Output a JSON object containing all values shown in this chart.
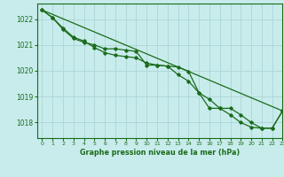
{
  "title": "Graphe pression niveau de la mer (hPa)",
  "background_color": "#c8ecec",
  "grid_color": "#b0d8d8",
  "line_color": "#1a6b1a",
  "text_color": "#1a6b1a",
  "xlim": [
    -0.5,
    23
  ],
  "ylim": [
    1017.4,
    1022.6
  ],
  "yticks": [
    1018,
    1019,
    1020,
    1021,
    1022
  ],
  "xticks": [
    0,
    1,
    2,
    3,
    4,
    5,
    6,
    7,
    8,
    9,
    10,
    11,
    12,
    13,
    14,
    15,
    16,
    17,
    18,
    19,
    20,
    21,
    22,
    23
  ],
  "series1_x": [
    0,
    1,
    2,
    3,
    4,
    5,
    6,
    7,
    8,
    9,
    10,
    11,
    12,
    13,
    14,
    15,
    16,
    17,
    18,
    19,
    20,
    21,
    22,
    23
  ],
  "series1_y": [
    1022.35,
    1022.05,
    1021.6,
    1021.25,
    1021.1,
    1021.0,
    1020.85,
    1020.85,
    1020.8,
    1020.75,
    1020.22,
    1020.22,
    1020.18,
    1019.85,
    1019.6,
    1019.15,
    1018.55,
    1018.55,
    1018.3,
    1018.0,
    1017.82,
    1017.78,
    1017.78,
    1018.45
  ],
  "series2_x": [
    0,
    1,
    2,
    3,
    4,
    5,
    6,
    7,
    8,
    9,
    10,
    11,
    12,
    13,
    14,
    15,
    16,
    17,
    18,
    19,
    20,
    21,
    22,
    23
  ],
  "series2_y": [
    1022.35,
    1022.05,
    1021.65,
    1021.3,
    1021.15,
    1020.9,
    1020.7,
    1020.6,
    1020.55,
    1020.5,
    1020.3,
    1020.22,
    1020.18,
    1020.15,
    1019.98,
    1019.15,
    1018.9,
    1018.55,
    1018.55,
    1018.3,
    1018.0,
    1017.78,
    1017.78,
    1018.45
  ],
  "series3_x": [
    0,
    23
  ],
  "series3_y": [
    1022.35,
    1018.45
  ]
}
